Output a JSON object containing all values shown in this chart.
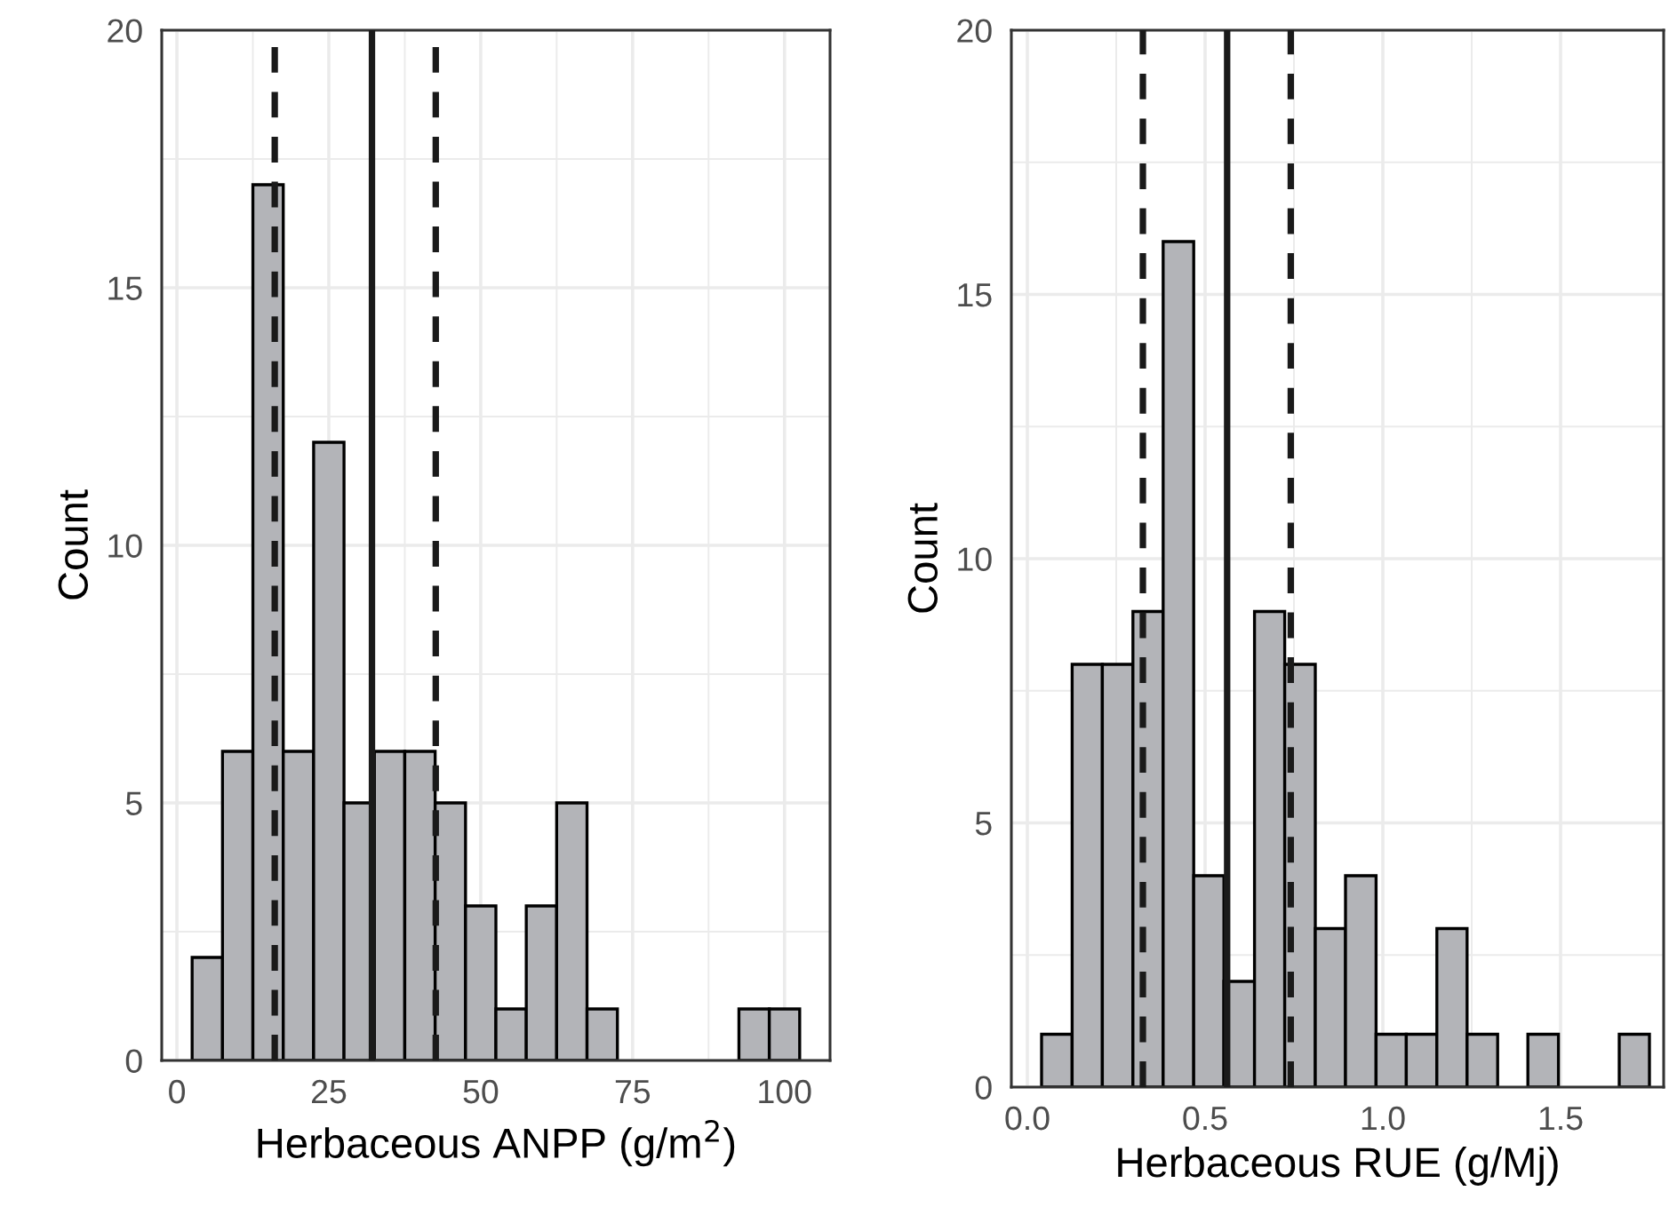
{
  "chart_data": [
    {
      "type": "histogram",
      "xlabel": "Herbaceous ANPP (g/m$^{2}$)",
      "ylabel": "Count",
      "color": "#b3b4b8",
      "bins": [
        2.5,
        7.5,
        12.5,
        17.5,
        22.5,
        27.5,
        32.5,
        37.5,
        42.5,
        47.5,
        52.5,
        57.5,
        62.5,
        67.5,
        72.5,
        77.5,
        82.5,
        87.5,
        92.5,
        97.5,
        102.5
      ],
      "values": [
        2,
        6,
        17,
        6,
        12,
        5,
        6,
        6,
        5,
        3,
        1,
        3,
        5,
        1,
        0,
        0,
        0,
        0,
        1,
        1
      ],
      "xlim": [
        -2.5,
        107.5
      ],
      "xticks": [
        0,
        25,
        50,
        75,
        100
      ],
      "ylim": [
        0,
        20
      ],
      "yticks": [
        0,
        5,
        10,
        15,
        20
      ],
      "grid": true,
      "ref_lines": [
        {
          "axis": "x",
          "value": 16.1,
          "line_style": "dashed",
          "color": "#1a1a1a"
        },
        {
          "axis": "x",
          "value": 32.1,
          "line_style": "solid",
          "color": "#1a1a1a"
        },
        {
          "axis": "x",
          "value": 42.6,
          "line_style": "dashed",
          "color": "#1a1a1a"
        }
      ]
    },
    {
      "type": "histogram",
      "xlabel": "Herbaceous RUE (g/Mj)",
      "ylabel": "Count",
      "color": "#b3b4b8",
      "bins": [
        0.04,
        0.126,
        0.211,
        0.297,
        0.382,
        0.468,
        0.553,
        0.639,
        0.724,
        0.81,
        0.895,
        0.981,
        1.066,
        1.152,
        1.237,
        1.323,
        1.408,
        1.494,
        1.579,
        1.665,
        1.75
      ],
      "values": [
        1,
        8,
        8,
        9,
        16,
        4,
        2,
        9,
        8,
        3,
        4,
        1,
        1,
        3,
        1,
        0,
        1,
        0,
        0,
        1
      ],
      "xlim": [
        -0.045,
        1.79
      ],
      "xticks": [
        {
          "value": 0,
          "label": "0.0"
        },
        0.5,
        {
          "value": 1,
          "label": "1.0"
        },
        1.5
      ],
      "ylim": [
        0,
        20
      ],
      "yticks": [
        0,
        5,
        10,
        15,
        20
      ],
      "grid": true,
      "ref_lines": [
        {
          "axis": "x",
          "value": 0.325,
          "line_style": "dashed",
          "color": "#1a1a1a"
        },
        {
          "axis": "x",
          "value": 0.562,
          "line_style": "solid",
          "color": "#1a1a1a"
        },
        {
          "axis": "x",
          "value": 0.741,
          "line_style": "dashed",
          "color": "#1a1a1a"
        }
      ]
    }
  ]
}
